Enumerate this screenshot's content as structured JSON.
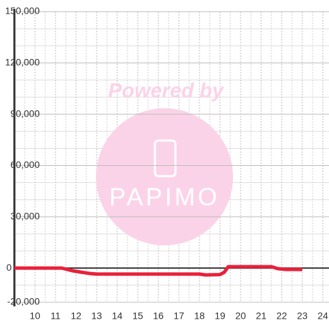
{
  "chart_data": {
    "type": "line",
    "watermark": {
      "line1": "Powered by",
      "line2": "PAPIMO"
    },
    "x": [
      9,
      10,
      11,
      11.3,
      11.8,
      12.3,
      12.7,
      13,
      14,
      15,
      16,
      17,
      18,
      18.3,
      19,
      19.2,
      19.4,
      20,
      21,
      21.5,
      21.8,
      22.2,
      23
    ],
    "series": [
      {
        "color": "#e8213a",
        "values": [
          0,
          0,
          0,
          0,
          -1500,
          -2500,
          -3200,
          -3500,
          -3500,
          -3500,
          -3500,
          -3500,
          -3500,
          -4000,
          -3800,
          -2500,
          800,
          800,
          800,
          800,
          -300,
          -800,
          -800
        ]
      }
    ],
    "xlim": [
      9,
      24.3
    ],
    "xticks": [
      10,
      11,
      12,
      13,
      14,
      15,
      16,
      17,
      18,
      19,
      20,
      21,
      22,
      23,
      24
    ],
    "xminorticks": [
      9.5,
      10.5,
      11.5,
      12.5,
      13.5,
      14.5,
      15.5,
      16.5,
      17.5,
      18.5,
      19.5,
      20.5,
      21.5,
      22.5,
      23.5
    ],
    "ylim": [
      -20000,
      150000
    ],
    "yticks": [
      {
        "value": -20000,
        "label": "-20,000"
      },
      0,
      {
        "value": 30000,
        "label": "30,000"
      },
      {
        "value": 60000,
        "label": "60,000"
      },
      {
        "value": 90000,
        "label": "90,000"
      },
      {
        "value": 120000,
        "label": "120,000"
      },
      {
        "value": 150000,
        "label": "150,000"
      }
    ],
    "yminorticks": [
      -10000,
      10000,
      20000,
      40000,
      50000,
      70000,
      80000,
      100000,
      110000,
      130000,
      140000
    ],
    "grid": true
  }
}
